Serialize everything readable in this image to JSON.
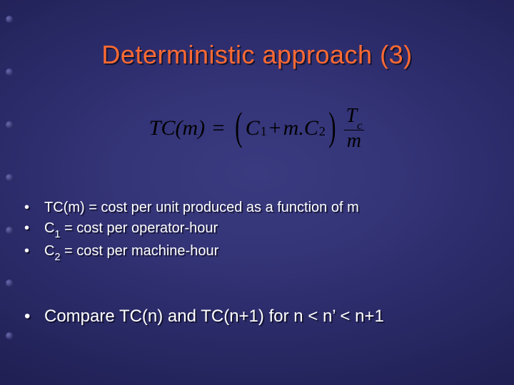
{
  "title": "Deterministic approach (3)",
  "formula": {
    "lhs": "TC(m)",
    "c1": "C",
    "c1_sub": "1",
    "plus": "+",
    "m_dot": "m.",
    "c2": "C",
    "c2_sub": "2",
    "frac_num_main": "T",
    "frac_num_sub": "c",
    "frac_den": "m"
  },
  "bullets_group1": [
    {
      "pre": "TC(m) = cost per unit produced as a function of m",
      "sub": "",
      "post": ""
    },
    {
      "pre": "C",
      "sub": "1",
      "post": " = cost per operator-hour"
    },
    {
      "pre": "C",
      "sub": "2",
      "post": " = cost per machine-hour"
    }
  ],
  "bullets_group2": [
    {
      "text": "Compare TC(n) and TC(n+1) for n < n' < n+1"
    }
  ],
  "colors": {
    "title": "#ff6a33",
    "body_text": "#ffffff",
    "formula_text": "#000000",
    "shadow": "rgba(0,0,0,0.55)"
  },
  "deco_bullet_tops": [
    22,
    96,
    170,
    244,
    318,
    392,
    466
  ]
}
